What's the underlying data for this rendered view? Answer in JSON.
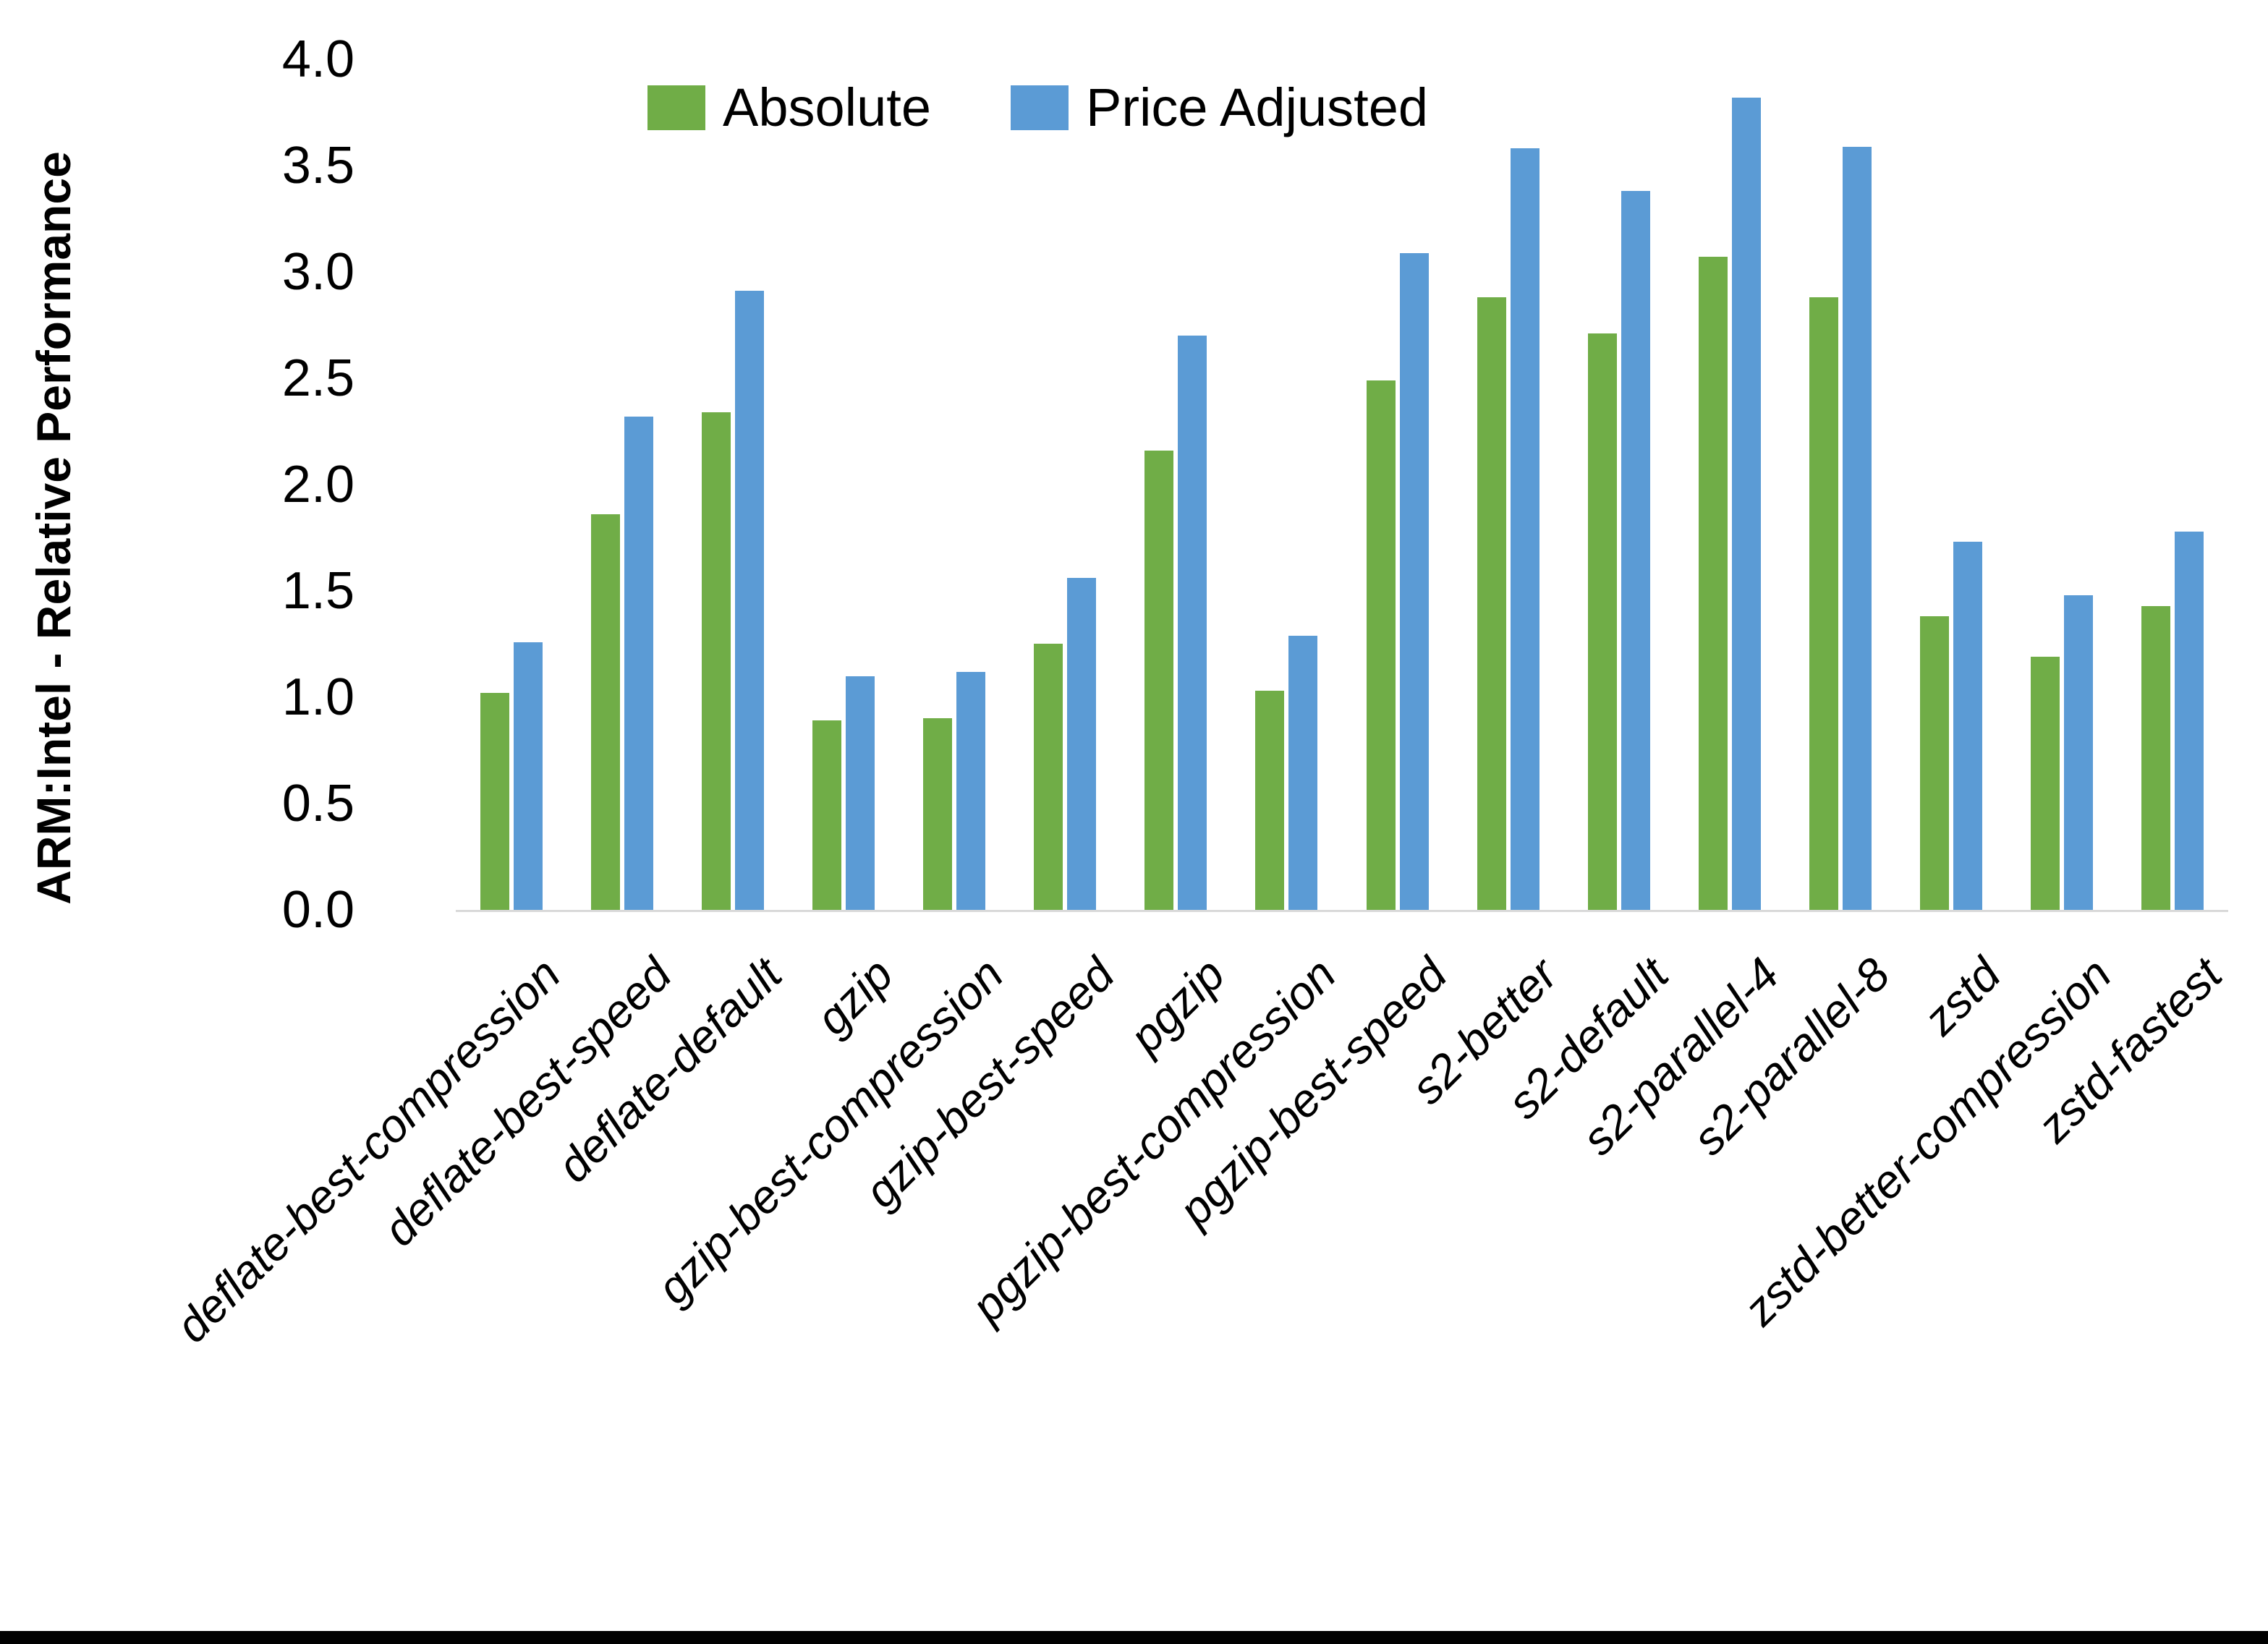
{
  "chart_data": {
    "type": "bar",
    "title": "",
    "xlabel": "",
    "ylabel": "ARM:Intel - Relative Performance",
    "ylim": [
      0.0,
      4.0
    ],
    "ytick_step": 0.5,
    "yticks": [
      "0.0",
      "0.5",
      "1.0",
      "1.5",
      "2.0",
      "2.5",
      "3.0",
      "3.5",
      "4.0"
    ],
    "grid": "off",
    "legend_position": "top-center-inside",
    "categories": [
      "deflate-best-compression",
      "deflate-best-speed",
      "deflate-default",
      "gzip",
      "gzip-best-compression",
      "gzip-best-speed",
      "pgzip",
      "pgzip-best-compression",
      "pgzip-best-speed",
      "s2-better",
      "s2-default",
      "s2-parallel-4",
      "s2-parallel-8",
      "zstd",
      "zstd-better-compression",
      "zstd-fastest"
    ],
    "series": [
      {
        "name": "Absolute",
        "color": "#70AD47",
        "values": [
          1.02,
          1.86,
          2.34,
          0.89,
          0.9,
          1.25,
          2.16,
          1.03,
          2.49,
          2.88,
          2.71,
          3.07,
          2.88,
          1.38,
          1.19,
          1.43
        ]
      },
      {
        "name": "Price Adjusted",
        "color": "#5B9BD5",
        "values": [
          1.26,
          2.32,
          2.91,
          1.1,
          1.12,
          1.56,
          2.7,
          1.29,
          3.09,
          3.58,
          3.38,
          3.82,
          3.59,
          1.73,
          1.48,
          1.78
        ]
      }
    ]
  },
  "colors": {
    "axis_line": "#D9D9D9",
    "text": "#000000",
    "background": "#FFFFFF",
    "bottom_border": "#000000"
  }
}
